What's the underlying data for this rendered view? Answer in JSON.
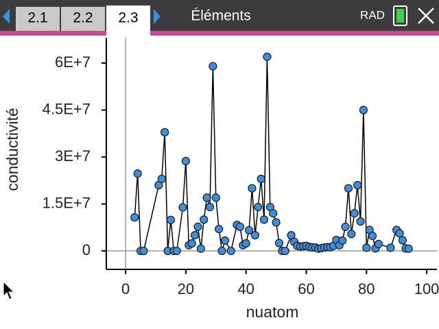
{
  "ui": {
    "tabs": [
      "2.1",
      "2.2",
      "2.3"
    ],
    "active_tab": 2,
    "title": "Éléments",
    "mode": "RAD"
  },
  "chart_data": {
    "type": "line",
    "xlabel": "nuatom",
    "ylabel": "conductivité",
    "x": [
      3,
      4,
      5,
      6,
      11,
      12,
      13,
      14,
      15,
      16,
      17,
      19,
      20,
      21,
      22,
      23,
      24,
      25,
      26,
      27,
      28,
      29,
      30,
      31,
      32,
      33,
      35,
      37,
      38,
      39,
      40,
      41,
      42,
      43,
      44,
      45,
      46,
      47,
      48,
      49,
      50,
      51,
      52,
      53,
      55,
      56,
      57,
      58,
      59,
      60,
      61,
      62,
      63,
      64,
      65,
      66,
      67,
      68,
      69,
      70,
      71,
      72,
      73,
      74,
      75,
      76,
      77,
      78,
      79,
      80,
      81,
      82,
      83,
      84,
      88,
      90,
      91,
      92,
      93,
      94
    ],
    "series": [
      {
        "name": "conductivité",
        "color": "#3d8fdd",
        "values": [
          10700000,
          24700000,
          0,
          0,
          21000000,
          23000000,
          37900000,
          0,
          9900000,
          0,
          0,
          13900000,
          28700000,
          1800000,
          2400000,
          5000000,
          7700000,
          700000,
          10000000,
          17000000,
          14000000,
          59000000,
          17000000,
          7000000,
          0,
          3300000,
          0,
          8300000,
          7700000,
          1800000,
          2400000,
          6600000,
          20000000,
          5000000,
          14000000,
          23000000,
          10000000,
          62000000,
          14000000,
          12000000,
          9100000,
          2500000,
          0,
          0,
          5000000,
          2900000,
          1600000,
          1400000,
          1500000,
          1600000,
          1300000,
          1100000,
          1100000,
          700000,
          900000,
          1100000,
          1200000,
          1200000,
          1600000,
          3500000,
          1800000,
          3300000,
          7700000,
          20000000,
          5400000,
          12000000,
          21000000,
          9400000,
          45000000,
          1000000,
          6700000,
          4800000,
          800000,
          2200000,
          1000000,
          6700000,
          5600000,
          3400000,
          800000,
          700000
        ]
      }
    ],
    "xlim": [
      -6.4,
      103.4
    ],
    "xticks": [
      0,
      20,
      40,
      60,
      80,
      100
    ],
    "ylim": [
      -5900000,
      68100000
    ],
    "yticks": [
      0,
      {
        "value": 15000000,
        "label": "1.5E+7"
      },
      {
        "value": 30000000,
        "label": "3E+7"
      },
      {
        "value": 45000000,
        "label": "4.5E+7"
      },
      {
        "value": 60000000,
        "label": "6E+7"
      }
    ]
  }
}
